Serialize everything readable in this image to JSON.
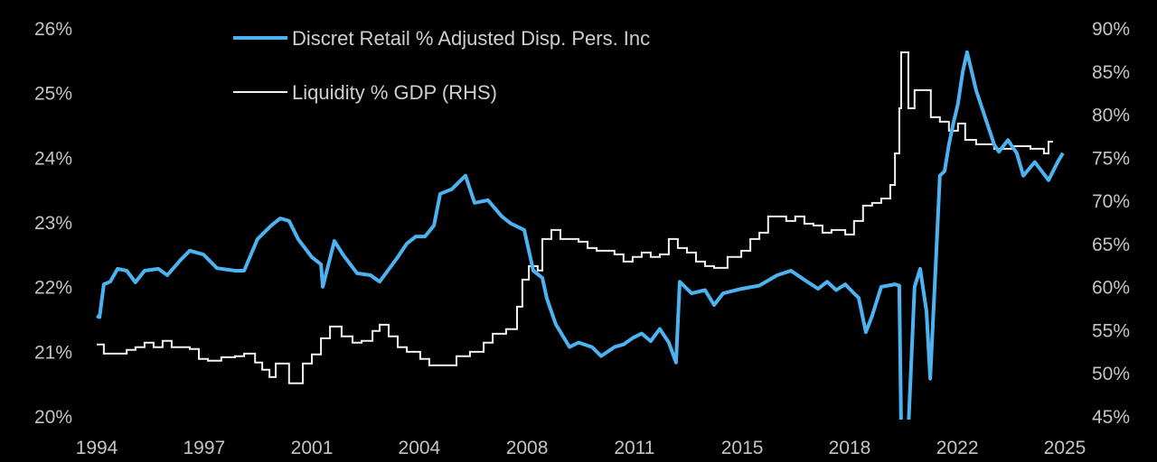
{
  "chart_data": {
    "type": "line",
    "title": "",
    "xlabel": "",
    "ylabel": "",
    "xlim": [
      1994,
      2025
    ],
    "ylim_left": [
      20,
      26
    ],
    "ylim_right": [
      45,
      90
    ],
    "grid": false,
    "legend_position": "top-center",
    "x_ticks": [
      {
        "label": "1994",
        "value": 1994.0
      },
      {
        "label": "1997",
        "value": 1997.44
      },
      {
        "label": "2001",
        "value": 2000.89
      },
      {
        "label": "2004",
        "value": 2004.33
      },
      {
        "label": "2008",
        "value": 2007.78
      },
      {
        "label": "2011",
        "value": 2011.22
      },
      {
        "label": "2015",
        "value": 2014.67
      },
      {
        "label": "2018",
        "value": 2018.11
      },
      {
        "label": "2022",
        "value": 2021.56
      },
      {
        "label": "2025",
        "value": 2025.0
      }
    ],
    "y_left_ticks": [
      {
        "label": "20%",
        "value": 20
      },
      {
        "label": "21%",
        "value": 21
      },
      {
        "label": "22%",
        "value": 22
      },
      {
        "label": "23%",
        "value": 23
      },
      {
        "label": "24%",
        "value": 24
      },
      {
        "label": "25%",
        "value": 25
      },
      {
        "label": "26%",
        "value": 26
      }
    ],
    "y_right_ticks": [
      {
        "label": "45%",
        "value": 45
      },
      {
        "label": "50%",
        "value": 50
      },
      {
        "label": "55%",
        "value": 55
      },
      {
        "label": "60%",
        "value": 60
      },
      {
        "label": "65%",
        "value": 65
      },
      {
        "label": "70%",
        "value": 70
      },
      {
        "label": "75%",
        "value": 75
      },
      {
        "label": "80%",
        "value": 80
      },
      {
        "label": "85%",
        "value": 85
      },
      {
        "label": "90%",
        "value": 90
      }
    ],
    "series": [
      {
        "name": "Discret Retail % Adjusted Disp. Pers. Inc",
        "axis": "left",
        "color": "#4db3f0",
        "x": [
          1994.0,
          1994.09,
          1994.23,
          1994.43,
          1994.67,
          1994.96,
          1995.24,
          1995.53,
          1995.97,
          1996.26,
          1996.69,
          1996.98,
          1997.42,
          1997.85,
          1998.43,
          1998.72,
          1999.15,
          1999.59,
          1999.88,
          2000.16,
          2000.45,
          2000.89,
          2001.18,
          2001.24,
          2001.61,
          2001.9,
          2002.34,
          2002.77,
          2003.06,
          2003.64,
          2003.93,
          2004.22,
          2004.51,
          2004.8,
          2005.0,
          2005.37,
          2005.81,
          2006.1,
          2006.53,
          2006.97,
          2007.26,
          2007.69,
          2007.98,
          2008.27,
          2008.41,
          2008.7,
          2009.14,
          2009.43,
          2009.86,
          2010.15,
          2010.58,
          2010.87,
          2011.16,
          2011.45,
          2011.74,
          2012.03,
          2012.32,
          2012.55,
          2012.67,
          2013.05,
          2013.48,
          2013.77,
          2014.06,
          2014.64,
          2015.22,
          2015.79,
          2016.23,
          2016.66,
          2017.1,
          2017.39,
          2017.68,
          2017.97,
          2018.25,
          2018.4,
          2018.63,
          2018.83,
          2019.12,
          2019.56,
          2019.7,
          2019.76,
          2019.85,
          2019.99,
          2020.19,
          2020.37,
          2020.57,
          2020.69,
          2020.86,
          2021.0,
          2021.15,
          2021.29,
          2021.44,
          2021.58,
          2021.73,
          2021.87,
          2022.16,
          2022.45,
          2022.74,
          2022.89,
          2023.18,
          2023.46,
          2023.67,
          2024.04,
          2024.48,
          2024.77,
          2024.94
        ],
        "values": [
          21.56,
          21.54,
          22.05,
          22.09,
          22.29,
          22.26,
          22.08,
          22.26,
          22.29,
          22.19,
          22.43,
          22.57,
          22.51,
          22.3,
          22.26,
          22.26,
          22.75,
          22.96,
          23.07,
          23.03,
          22.75,
          22.47,
          22.36,
          22.01,
          22.72,
          22.5,
          22.22,
          22.19,
          22.09,
          22.47,
          22.68,
          22.79,
          22.79,
          22.96,
          23.45,
          23.52,
          23.73,
          23.31,
          23.35,
          23.1,
          22.99,
          22.89,
          22.26,
          22.15,
          21.84,
          21.43,
          21.08,
          21.15,
          21.08,
          20.94,
          21.08,
          21.12,
          21.22,
          21.29,
          21.17,
          21.36,
          21.15,
          20.84,
          22.09,
          21.91,
          21.96,
          21.73,
          21.91,
          21.98,
          22.03,
          22.19,
          22.26,
          22.12,
          21.98,
          22.09,
          21.96,
          22.05,
          21.91,
          21.84,
          21.31,
          21.56,
          22.01,
          22.05,
          22.03,
          19.8,
          19.8,
          19.8,
          22.01,
          22.29,
          21.63,
          20.59,
          22.29,
          23.73,
          23.8,
          24.21,
          24.56,
          24.84,
          25.33,
          25.64,
          25.05,
          24.63,
          24.21,
          24.1,
          24.28,
          24.08,
          23.73,
          23.94,
          23.66,
          23.94,
          24.08
        ]
      },
      {
        "name": "Liquidity % GDP (RHS)",
        "axis": "right",
        "color": "#f2f2f2",
        "x": [
          1994.0,
          1994.23,
          1994.67,
          1994.96,
          1995.24,
          1995.53,
          1995.82,
          1996.11,
          1996.4,
          1996.98,
          1997.27,
          1997.56,
          1997.99,
          1998.43,
          1998.72,
          1999.07,
          1999.3,
          1999.53,
          1999.73,
          2000.02,
          2000.16,
          2000.45,
          2000.6,
          2000.89,
          2001.18,
          2001.47,
          2001.84,
          2002.19,
          2002.48,
          2002.83,
          2003.06,
          2003.35,
          2003.64,
          2003.93,
          2004.36,
          2004.65,
          2005.09,
          2005.52,
          2005.95,
          2006.39,
          2006.68,
          2007.11,
          2007.46,
          2007.63,
          2007.84,
          2008.12,
          2008.27,
          2008.56,
          2008.85,
          2009.43,
          2009.72,
          2010.01,
          2010.58,
          2010.87,
          2011.16,
          2011.45,
          2011.74,
          2012.03,
          2012.32,
          2012.61,
          2012.9,
          2013.19,
          2013.48,
          2013.77,
          2014.2,
          2014.64,
          2014.93,
          2015.22,
          2015.5,
          2015.79,
          2016.08,
          2016.37,
          2016.66,
          2016.95,
          2017.24,
          2017.53,
          2017.97,
          2018.25,
          2018.54,
          2018.83,
          2019.12,
          2019.41,
          2019.56,
          2019.7,
          2019.76,
          2019.93,
          2019.99,
          2020.19,
          2020.63,
          2020.71,
          2021.0,
          2021.29,
          2021.58,
          2021.81,
          2022.16,
          2022.74,
          2023.32,
          2023.9,
          2024.33,
          2024.48,
          2024.62
        ],
        "values": [
          53.4,
          52.34,
          52.34,
          52.76,
          53.08,
          53.6,
          53.08,
          53.81,
          53.08,
          52.87,
          51.72,
          51.51,
          51.92,
          52.03,
          52.34,
          51.3,
          50.46,
          49.62,
          51.19,
          51.19,
          48.89,
          48.89,
          51.19,
          52.24,
          54.12,
          55.48,
          54.33,
          53.6,
          53.81,
          54.96,
          55.69,
          54.33,
          53.08,
          52.55,
          51.72,
          50.98,
          50.98,
          52.03,
          52.55,
          53.6,
          54.64,
          55.17,
          57.78,
          60.92,
          62.49,
          61.97,
          65.63,
          66.67,
          65.63,
          65.31,
          64.58,
          64.27,
          63.85,
          63.01,
          63.54,
          64.06,
          63.54,
          63.85,
          65.63,
          64.58,
          64.06,
          63.01,
          62.49,
          62.28,
          63.54,
          64.27,
          65.63,
          66.36,
          68.24,
          68.24,
          67.72,
          68.24,
          67.41,
          67.2,
          66.36,
          66.67,
          66.15,
          67.72,
          69.5,
          69.81,
          70.33,
          71.9,
          75.56,
          80.79,
          87.28,
          87.28,
          80.79,
          82.89,
          82.89,
          79.75,
          79.23,
          78.18,
          79.02,
          77.13,
          76.61,
          76.09,
          76.4,
          76.09,
          75.56,
          76.92,
          76.92
        ]
      }
    ]
  }
}
